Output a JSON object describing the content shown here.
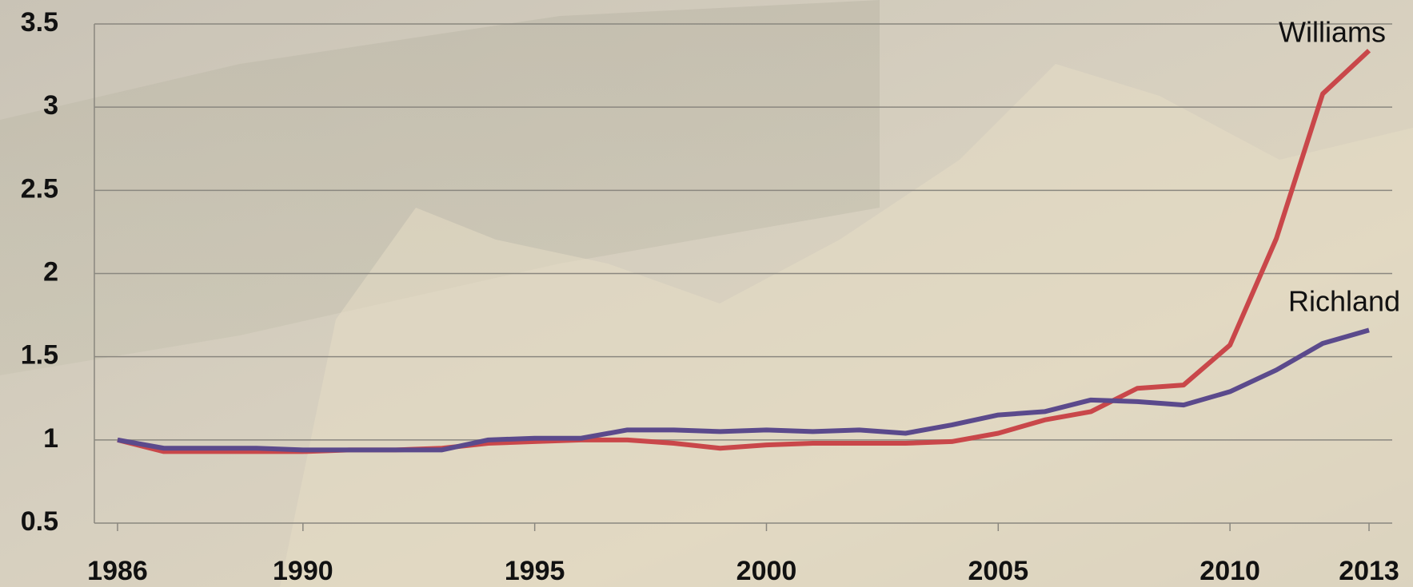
{
  "chart_data": {
    "type": "line",
    "x": [
      1986,
      1987,
      1988,
      1989,
      1990,
      1991,
      1992,
      1993,
      1994,
      1995,
      1996,
      1997,
      1998,
      1999,
      2000,
      2001,
      2002,
      2003,
      2004,
      2005,
      2006,
      2007,
      2008,
      2009,
      2010,
      2011,
      2012,
      2013
    ],
    "series": [
      {
        "name": "Williams",
        "color": "#c9474a",
        "values": [
          1.0,
          0.93,
          0.93,
          0.93,
          0.93,
          0.94,
          0.94,
          0.95,
          0.98,
          0.99,
          1.0,
          1.0,
          0.98,
          0.95,
          0.97,
          0.98,
          0.98,
          0.98,
          0.99,
          1.04,
          1.12,
          1.17,
          1.31,
          1.33,
          1.57,
          2.21,
          3.08,
          3.34
        ]
      },
      {
        "name": "Richland",
        "color": "#5b4a8c",
        "values": [
          1.0,
          0.95,
          0.95,
          0.95,
          0.94,
          0.94,
          0.94,
          0.94,
          1.0,
          1.01,
          1.01,
          1.06,
          1.06,
          1.05,
          1.06,
          1.05,
          1.06,
          1.04,
          1.09,
          1.15,
          1.17,
          1.24,
          1.23,
          1.21,
          1.29,
          1.42,
          1.58,
          1.66
        ]
      }
    ],
    "xlim": [
      1985.5,
      2013.5
    ],
    "xticks": [
      1986,
      1990,
      1995,
      2000,
      2005,
      2010,
      2013
    ],
    "ylim": [
      0.5,
      3.5
    ],
    "yticks": [
      0.5,
      1,
      1.5,
      2,
      2.5,
      3,
      3.5
    ],
    "grid": true
  }
}
